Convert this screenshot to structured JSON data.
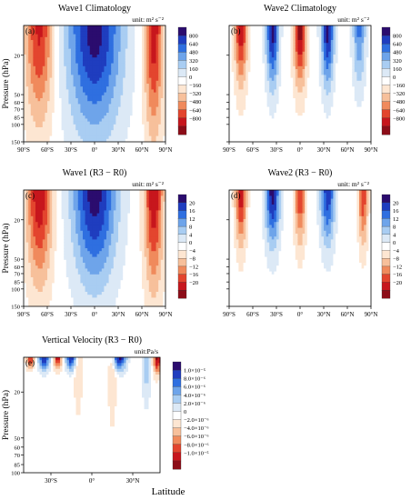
{
  "figure": {
    "y_axis_label": "Pressure (hPa)",
    "x_axis_label": "Latitude"
  },
  "colors": {
    "levels": [
      "#2b0c6e",
      "#1f3dbf",
      "#2f6fe0",
      "#6ea4ea",
      "#a9cdf2",
      "#dce9f6",
      "#ffffff",
      "#fde6d2",
      "#f7c09b",
      "#f08a5c",
      "#e3452e",
      "#c7161d",
      "#8c0d18"
    ]
  },
  "chart_data": [
    {
      "id": "a",
      "type": "contour",
      "panel_label": "(a)",
      "title": "Wave1 Climatology",
      "unit_label": "unit: m² s⁻²",
      "xlabel": "",
      "ylabel": "Pressure (hPa)",
      "xlim": [
        -90,
        90
      ],
      "ylim": [
        150,
        10
      ],
      "x_ticks": [
        -90,
        -60,
        -30,
        0,
        30,
        60,
        90
      ],
      "x_tick_labels": [
        "90°S",
        "60°S",
        "30°S",
        "0°",
        "30°N",
        "60°N",
        "90°N"
      ],
      "y_ticks": [
        20,
        50,
        60,
        70,
        85,
        100,
        150
      ],
      "y_tick_labels": [
        "20",
        "50",
        "60",
        "70",
        "85",
        "100",
        "150"
      ],
      "colorbar_labels": [
        "800",
        "640",
        "480",
        "320",
        "160",
        "0",
        "−160",
        "−320",
        "−480",
        "−640",
        "−800"
      ],
      "features": [
        {
          "lat": 0,
          "value": 800,
          "width": 35,
          "depth": 1.0,
          "spread": 18
        },
        {
          "lat": -70,
          "value": -640,
          "width": 18,
          "depth": 0.9,
          "spread": 14
        },
        {
          "lat": 75,
          "value": -700,
          "width": 12,
          "depth": 1.0,
          "spread": 10
        }
      ]
    },
    {
      "id": "b",
      "type": "contour",
      "panel_label": "(b)",
      "title": "Wave2 Climatology",
      "unit_label": "unit: m² s⁻²",
      "xlabel": "",
      "ylabel": "",
      "xlim": [
        -90,
        90
      ],
      "ylim": [
        150,
        10
      ],
      "x_ticks": [
        -90,
        -60,
        -30,
        0,
        30,
        60,
        90
      ],
      "x_tick_labels": [
        "90°S",
        "60°S",
        "30°S",
        "0°",
        "30°N",
        "60°N",
        "90°N"
      ],
      "y_ticks": [
        20,
        50,
        60,
        70,
        85,
        100,
        150
      ],
      "y_tick_labels": [
        "",
        "",
        "",
        "",
        "",
        "",
        ""
      ],
      "colorbar_labels": [
        "800",
        "640",
        "480",
        "320",
        "160",
        "0",
        "−160",
        "−320",
        "−480",
        "−640",
        "−800"
      ],
      "features": [
        {
          "lat": -35,
          "value": 640,
          "width": 8,
          "depth": 0.55,
          "spread": 15
        },
        {
          "lat": 35,
          "value": 640,
          "width": 8,
          "depth": 0.55,
          "spread": 15
        },
        {
          "lat": 0,
          "value": -640,
          "width": 8,
          "depth": 0.55,
          "spread": 15
        },
        {
          "lat": -75,
          "value": -560,
          "width": 8,
          "depth": 0.55,
          "spread": 15
        },
        {
          "lat": 75,
          "value": 400,
          "width": 8,
          "depth": 0.55,
          "spread": 15
        }
      ]
    },
    {
      "id": "c",
      "type": "contour",
      "panel_label": "(c)",
      "title": "Wave1 (R3 − R0)",
      "unit_label": "unit: m² s⁻²",
      "xlabel": "",
      "ylabel": "Pressure (hPa)",
      "xlim": [
        -90,
        90
      ],
      "ylim": [
        150,
        10
      ],
      "x_ticks": [
        -90,
        -60,
        -30,
        0,
        30,
        60,
        90
      ],
      "x_tick_labels": [
        "90°S",
        "60°S",
        "30°S",
        "0°",
        "30°N",
        "60°N",
        "90°N"
      ],
      "y_ticks": [
        20,
        50,
        60,
        70,
        85,
        100,
        150
      ],
      "y_tick_labels": [
        "20",
        "50",
        "60",
        "70",
        "85",
        "100",
        "150"
      ],
      "colorbar_labels": [
        "20",
        "16",
        "12",
        "8",
        "4",
        "0",
        "−4",
        "−8",
        "−12",
        "−16",
        "−20"
      ],
      "features": [
        {
          "lat": 0,
          "value": 20,
          "width": 28,
          "depth": 0.85,
          "spread": 20
        },
        {
          "lat": -70,
          "value": -18,
          "width": 16,
          "depth": 0.85,
          "spread": 16
        },
        {
          "lat": 75,
          "value": -18,
          "width": 12,
          "depth": 0.9,
          "spread": 12
        }
      ]
    },
    {
      "id": "d",
      "type": "contour",
      "panel_label": "(d)",
      "title": "Wave2 (R3 − R0)",
      "unit_label": "unit: m² s⁻²",
      "xlabel": "",
      "ylabel": "",
      "xlim": [
        -90,
        90
      ],
      "ylim": [
        150,
        10
      ],
      "x_ticks": [
        -90,
        -60,
        -30,
        0,
        30,
        60,
        90
      ],
      "x_tick_labels": [
        "90°S",
        "60°S",
        "30°S",
        "0°",
        "30°N",
        "60°N",
        "90°N"
      ],
      "y_ticks": [
        20,
        50,
        60,
        70,
        85,
        100,
        150
      ],
      "y_tick_labels": [
        "",
        "",
        "",
        "",
        "",
        "",
        ""
      ],
      "colorbar_labels": [
        "20",
        "16",
        "12",
        "8",
        "4",
        "0",
        "−4",
        "−8",
        "−12",
        "−16",
        "−20"
      ],
      "features": [
        {
          "lat": -35,
          "value": 16,
          "width": 9,
          "depth": 0.5,
          "spread": 15
        },
        {
          "lat": 35,
          "value": 14,
          "width": 9,
          "depth": 0.5,
          "spread": 15
        },
        {
          "lat": 0,
          "value": -12,
          "width": 7,
          "depth": 0.5,
          "spread": 15
        },
        {
          "lat": -75,
          "value": -14,
          "width": 7,
          "depth": 0.5,
          "spread": 15
        },
        {
          "lat": 80,
          "value": -12,
          "width": 6,
          "depth": 0.5,
          "spread": 15
        }
      ]
    },
    {
      "id": "e",
      "type": "contour",
      "panel_label": "(e)",
      "title": "Vertical Velocity (R3 − R0)",
      "unit_label": "unit:Pa/s",
      "xlabel": "Latitude",
      "ylabel": "Pressure (hPa)",
      "xlim": [
        -50,
        50
      ],
      "ylim": [
        100,
        10
      ],
      "x_ticks": [
        -30,
        0,
        30
      ],
      "x_tick_labels": [
        "30°S",
        "0°",
        "30°N"
      ],
      "y_ticks": [
        20,
        50,
        60,
        70,
        85,
        100
      ],
      "y_tick_labels": [
        "20",
        "50",
        "60",
        "70",
        "85",
        "100"
      ],
      "colorbar_labels": [
        "1.0×10⁻⁵",
        "8.0×10⁻⁶",
        "6.0×10⁻⁶",
        "4.0×10⁻⁶",
        "2.0×10⁻⁶",
        "0",
        "−2.0×10⁻⁶",
        "−4.0×10⁻⁶",
        "−6.0×10⁻⁶",
        "−8.0×10⁻⁶",
        "−1.0×10⁻⁵"
      ],
      "features": [
        {
          "lat": -35,
          "value": 9e-06,
          "width": 4,
          "depth": 0.12,
          "spread": 8
        },
        {
          "lat": -15,
          "value": 9e-06,
          "width": 4,
          "depth": 0.12,
          "spread": 8
        },
        {
          "lat": 20,
          "value": 1e-05,
          "width": 5,
          "depth": 0.12,
          "spread": 8
        },
        {
          "lat": -25,
          "value": -9e-06,
          "width": 3,
          "depth": 0.1,
          "spread": 6
        },
        {
          "lat": -45,
          "value": -8e-06,
          "width": 3,
          "depth": 0.1,
          "spread": 6
        },
        {
          "lat": 48,
          "value": -1e-05,
          "width": 3,
          "depth": 0.15,
          "spread": 6
        },
        {
          "lat": -10,
          "value": -3e-06,
          "width": 3,
          "depth": 0.5,
          "spread": 30
        },
        {
          "lat": 15,
          "value": -3e-06,
          "width": 3,
          "depth": 0.6,
          "spread": 30
        },
        {
          "lat": 40,
          "value": 4e-06,
          "width": 3,
          "depth": 0.4,
          "spread": 15
        }
      ]
    }
  ]
}
